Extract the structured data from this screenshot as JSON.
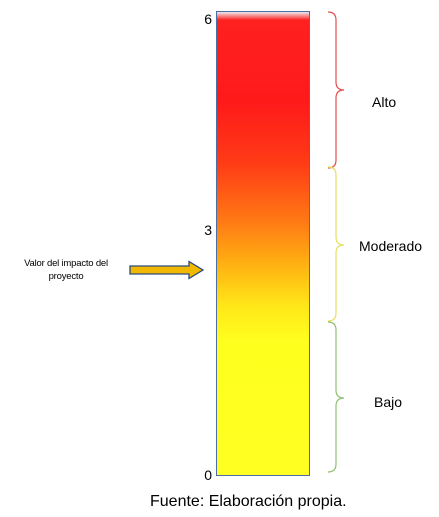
{
  "scale": {
    "ticks": [
      "6",
      "3",
      "0"
    ],
    "levels": [
      {
        "label": "Alto",
        "bracket_color": "#e05050"
      },
      {
        "label": "Moderado",
        "bracket_color": "#e8e060"
      },
      {
        "label": "Bajo",
        "bracket_color": "#90c070"
      }
    ]
  },
  "indicator": {
    "label_line1": "Valor del impacto del",
    "label_line2": "proyecto",
    "arrow_color": "#f2b800"
  },
  "source": "Fuente: Elaboración propia."
}
